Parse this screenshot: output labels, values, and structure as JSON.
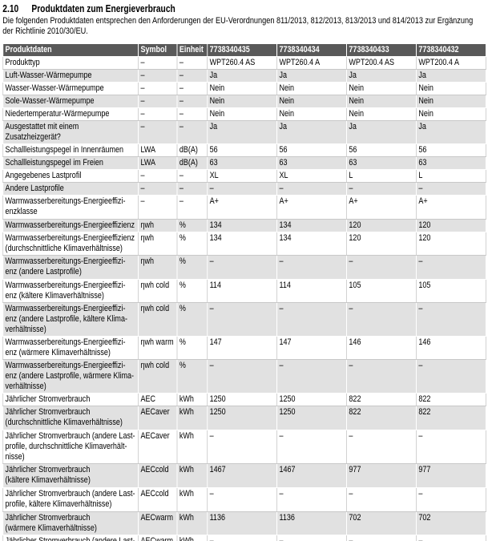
{
  "header": {
    "number": "2.10",
    "title": "Produktdaten zum Energieverbrauch"
  },
  "intro": "Die folgenden Produktdaten entsprechen den Anforderungen der EU-Verordnungen 811/2013, 812/2013, 813/2013 und 814/2013 zur Ergänzung\nder Richtlinie 2010/30/EU.",
  "table": {
    "columns": [
      "Produktdaten",
      "Symbol",
      "Einheit",
      "7738340435",
      "7738340434",
      "7738340433",
      "7738340432"
    ],
    "rows": [
      [
        "Produkttyp",
        "–",
        "–",
        "WPT260.4 AS",
        "WPT260.4 A",
        "WPT200.4 AS",
        "WPT200.4 A"
      ],
      [
        "Luft-Wasser-Wärmepumpe",
        "–",
        "–",
        "Ja",
        "Ja",
        "Ja",
        "Ja"
      ],
      [
        "Wasser-Wasser-Wärmepumpe",
        "–",
        "–",
        "Nein",
        "Nein",
        "Nein",
        "Nein"
      ],
      [
        "Sole-Wasser-Wärmepumpe",
        "–",
        "–",
        "Nein",
        "Nein",
        "Nein",
        "Nein"
      ],
      [
        "Niedertemperatur-Wärmepumpe",
        "–",
        "–",
        "Nein",
        "Nein",
        "Nein",
        "Nein"
      ],
      [
        "Ausgestattet mit einem Zusatzheizgerät?",
        "–",
        "–",
        "Ja",
        "Ja",
        "Ja",
        "Ja"
      ],
      [
        "Schallleistungspegel in Innenräumen",
        "LWA",
        "dB(A)",
        "56",
        "56",
        "56",
        "56"
      ],
      [
        "Schallleistungspegel im Freien",
        "LWA",
        "dB(A)",
        "63",
        "63",
        "63",
        "63"
      ],
      [
        "Angegebenes Lastprofil",
        "–",
        "–",
        "XL",
        "XL",
        "L",
        "L"
      ],
      [
        "Andere Lastprofile",
        "–",
        "–",
        "–",
        "–",
        "–",
        "–"
      ],
      [
        "Warmwasserbereitungs-Energieeffizi-\nenzklasse",
        "–",
        "–",
        "A+",
        "A+",
        "A+",
        "A+"
      ],
      [
        "Warmwasserbereitungs-Energieeffizienz",
        "ηwh",
        "%",
        "134",
        "134",
        "120",
        "120"
      ],
      [
        "Warmwasserbereitungs-Energieeffizienz\n(durchschnittliche Klimaverhältnisse)",
        "ηwh",
        "%",
        "134",
        "134",
        "120",
        "120"
      ],
      [
        "Warmwasserbereitungs-Energieeffizi-\nenz (andere Lastprofile)",
        "ηwh",
        "%",
        "–",
        "–",
        "–",
        "–"
      ],
      [
        "Warmwasserbereitungs-Energieeffizi-\nenz (kältere Klimaverhältnisse)",
        "ηwh cold",
        "%",
        "114",
        "114",
        "105",
        "105"
      ],
      [
        "Warmwasserbereitungs-Energieeffizi-\nenz (andere Lastprofile, kältere Klima-\nverhältnisse)",
        "ηwh cold",
        "%",
        "–",
        "–",
        "–",
        "–"
      ],
      [
        "Warmwasserbereitungs-Energieeffizi-\nenz (wärmere Klimaverhältnisse)",
        "ηwh warm",
        "%",
        "147",
        "147",
        "146",
        "146"
      ],
      [
        "Warmwasserbereitungs-Energieeffizi-\nenz (andere Lastprofile, wärmere Klima-\nverhältnisse)",
        "ηwh cold",
        "%",
        "–",
        "–",
        "–",
        "–"
      ],
      [
        "Jährlicher Stromverbrauch",
        "AEC",
        "kWh",
        "1250",
        "1250",
        "822",
        "822"
      ],
      [
        "Jährlicher Stromverbrauch\n(durchschnittliche Klimaverhältnisse)",
        "AECaver",
        "kWh",
        "1250",
        "1250",
        "822",
        "822"
      ],
      [
        "Jährlicher Stromverbrauch (andere Last-\nprofile, durchschnittliche Klimaverhält-\nnisse)",
        "AECaver",
        "kWh",
        "–",
        "–",
        "–",
        "–"
      ],
      [
        "Jährlicher Stromverbrauch\n(kältere Klimaverhältnisse)",
        "AECcold",
        "kWh",
        "1467",
        "1467",
        "977",
        "977"
      ],
      [
        "Jährlicher Stromverbrauch (andere Last-\nprofile, kältere Klimaverhältnisse)",
        "AECcold",
        "kWh",
        "–",
        "–",
        "–",
        "–"
      ],
      [
        "Jährlicher Stromverbrauch\n(wärmere Klimaverhältnisse)",
        "AECwarm",
        "kWh",
        "1136",
        "1136",
        "702",
        "702"
      ],
      [
        "Jährlicher Stromverbrauch (andere Last-\nprofile, wärmere Klimaverhältnisse)",
        "AECwarm",
        "kWh",
        "–",
        "–",
        "–",
        "–"
      ]
    ]
  }
}
